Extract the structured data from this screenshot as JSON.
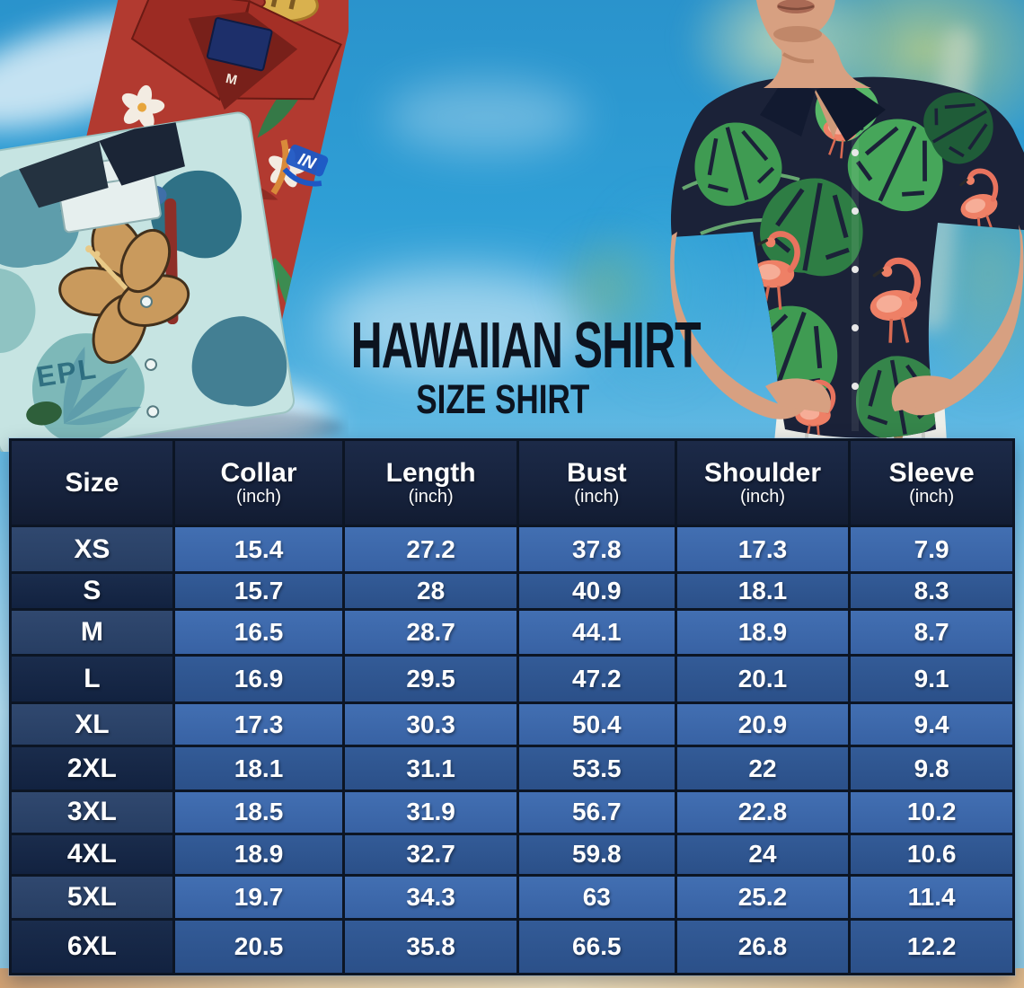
{
  "title": {
    "main": "HAWAIIAN SHIRT",
    "subtitle": "SIZE SHIRT"
  },
  "size_table": {
    "columns": [
      {
        "label": "Size",
        "unit": ""
      },
      {
        "label": "Collar",
        "unit": "(inch)"
      },
      {
        "label": "Length",
        "unit": "(inch)"
      },
      {
        "label": "Bust",
        "unit": "(inch)"
      },
      {
        "label": "Shoulder",
        "unit": "(inch)"
      },
      {
        "label": "Sleeve",
        "unit": "(inch)"
      }
    ],
    "rows": [
      {
        "size": "XS",
        "values": [
          "15.4",
          "27.2",
          "37.8",
          "17.3",
          "7.9"
        ]
      },
      {
        "size": "S",
        "values": [
          "15.7",
          "28",
          "40.9",
          "18.1",
          "8.3"
        ]
      },
      {
        "size": "M",
        "values": [
          "16.5",
          "28.7",
          "44.1",
          "18.9",
          "8.7"
        ]
      },
      {
        "size": "L",
        "values": [
          "16.9",
          "29.5",
          "47.2",
          "20.1",
          "9.1"
        ]
      },
      {
        "size": "XL",
        "values": [
          "17.3",
          "30.3",
          "50.4",
          "20.9",
          "9.4"
        ]
      },
      {
        "size": "2XL",
        "values": [
          "18.1",
          "31.1",
          "53.5",
          "22",
          "9.8"
        ]
      },
      {
        "size": "3XL",
        "values": [
          "18.5",
          "31.9",
          "56.7",
          "22.8",
          "10.2"
        ]
      },
      {
        "size": "4XL",
        "values": [
          "18.9",
          "32.7",
          "59.8",
          "24",
          "10.6"
        ]
      },
      {
        "size": "5XL",
        "values": [
          "19.7",
          "34.3",
          "63",
          "25.2",
          "11.4"
        ]
      },
      {
        "size": "6XL",
        "values": [
          "20.5",
          "35.8",
          "66.5",
          "26.8",
          "12.2"
        ]
      }
    ]
  },
  "chart_data": {
    "type": "table",
    "title": "Hawaiian Shirt Size Shirt",
    "columns": [
      "Size",
      "Collar (inch)",
      "Length (inch)",
      "Bust (inch)",
      "Shoulder (inch)",
      "Sleeve (inch)"
    ],
    "rows": [
      [
        "XS",
        15.4,
        27.2,
        37.8,
        17.3,
        7.9
      ],
      [
        "S",
        15.7,
        28,
        40.9,
        18.1,
        8.3
      ],
      [
        "M",
        16.5,
        28.7,
        44.1,
        18.9,
        8.7
      ],
      [
        "L",
        16.9,
        29.5,
        47.2,
        20.1,
        9.1
      ],
      [
        "XL",
        17.3,
        30.3,
        50.4,
        20.9,
        9.4
      ],
      [
        "2XL",
        18.1,
        31.1,
        53.5,
        22,
        9.8
      ],
      [
        "3XL",
        18.5,
        31.9,
        56.7,
        22.8,
        10.2
      ],
      [
        "4XL",
        18.9,
        32.7,
        59.8,
        24,
        10.6
      ],
      [
        "5XL",
        19.7,
        34.3,
        63,
        25.2,
        11.4
      ],
      [
        "6XL",
        20.5,
        35.8,
        66.5,
        26.8,
        12.2
      ]
    ]
  },
  "photos": {
    "left_shirts": {
      "red_shirt_tag": "M",
      "red_shirt_logo": "IN",
      "teal_shirt_print": "EPL"
    }
  },
  "colors": {
    "header_bg": "#16223c",
    "row_light_value": "#3c68aa",
    "row_dark_value": "#2e5490",
    "row_light_label": "#2a4066",
    "row_dark_label": "#142643",
    "table_border": "#0c1524",
    "sky": "#2f9fd6",
    "sand": "#eed3a6",
    "title_text": "#0c131f",
    "model_shirt_navy": "#1b2238",
    "flamingo_pink": "#ee8066",
    "leaf_green": "#3f9b52",
    "red_shirt": "#b23a30",
    "teal_shirt": "#c6e4e2"
  }
}
